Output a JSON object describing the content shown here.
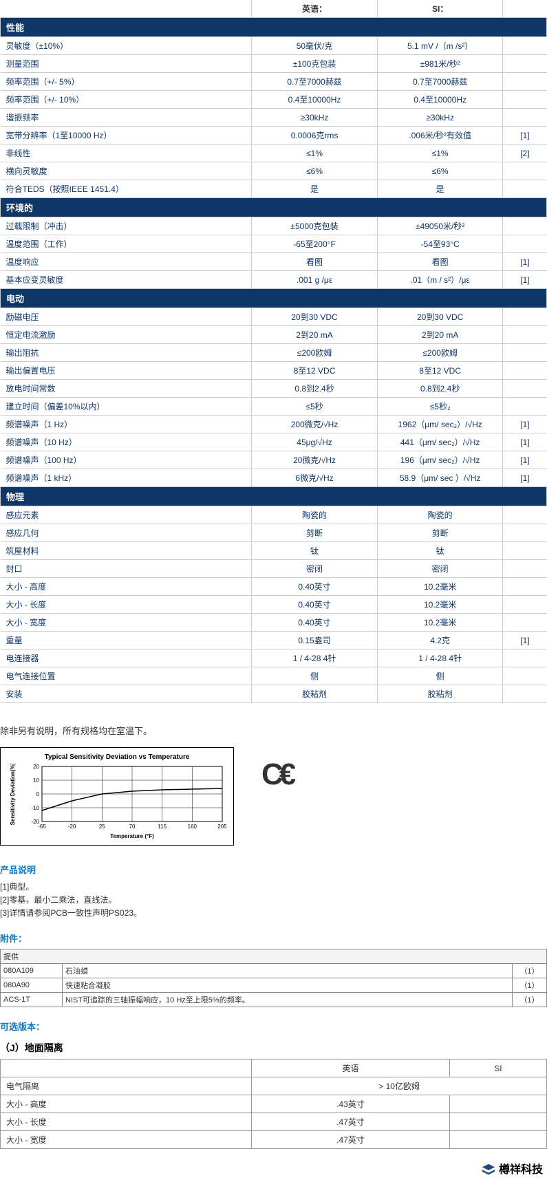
{
  "header": {
    "col_en": "英语：",
    "col_si": "SI："
  },
  "sections": [
    {
      "title": "性能",
      "rows": [
        {
          "label": "灵敏度（±10%）",
          "en": "50毫伏/克",
          "si": "5.1 mV /（m /s²）",
          "note": ""
        },
        {
          "label": "测量范围",
          "en": "±100克包装",
          "si": "±981米/秒²",
          "note": ""
        },
        {
          "label": "频率范围（+/- 5%）",
          "en": "0.7至7000赫兹",
          "si": "0.7至7000赫兹",
          "note": ""
        },
        {
          "label": "频率范围（+/- 10%）",
          "en": "0.4至10000Hz",
          "si": "0.4至10000Hz",
          "note": ""
        },
        {
          "label": "谐振频率",
          "en": "≥30kHz",
          "si": "≥30kHz",
          "note": ""
        },
        {
          "label": "宽带分辨率（1至10000 Hz）",
          "en": "0.0006克rms",
          "si": ".006米/秒²有效值",
          "note": "[1]"
        },
        {
          "label": "非线性",
          "en": "≤1%",
          "si": "≤1%",
          "note": "[2]"
        },
        {
          "label": "横向灵敏度",
          "en": "≤6%",
          "si": "≤6%",
          "note": ""
        },
        {
          "label": "符合TEDS（按照IEEE 1451.4）",
          "en": "是",
          "si": "是",
          "note": ""
        }
      ]
    },
    {
      "title": "环境的",
      "rows": [
        {
          "label": "过载限制（冲击）",
          "en": "±5000克包装",
          "si": "±49050米/秒²",
          "note": ""
        },
        {
          "label": "温度范围（工作）",
          "en": "-65至200°F",
          "si": "-54至93°C",
          "note": ""
        },
        {
          "label": "温度响应",
          "en": "看图",
          "si": "看图",
          "note": "[1]"
        },
        {
          "label": "基本应变灵敏度",
          "en": ".001 g /με",
          "si": ".01（m / s²）/με",
          "note": "[1]"
        }
      ]
    },
    {
      "title": "电动",
      "rows": [
        {
          "label": "励磁电压",
          "en": "20到30 VDC",
          "si": "20到30 VDC",
          "note": ""
        },
        {
          "label": "恒定电流激励",
          "en": "2到20 mA",
          "si": "2到20 mA",
          "note": ""
        },
        {
          "label": "输出阻抗",
          "en": "≤200欧姆",
          "si": "≤200欧姆",
          "note": ""
        },
        {
          "label": "输出偏置电压",
          "en": "8至12 VDC",
          "si": "8至12 VDC",
          "note": ""
        },
        {
          "label": "放电时间常数",
          "en": "0.8到2.4秒",
          "si": "0.8到2.4秒",
          "note": ""
        },
        {
          "label": "建立时间（偏差10%以内）",
          "en": "≤5秒",
          "si": "≤5秒₂",
          "note": ""
        },
        {
          "label": "频谱噪声（1 Hz）",
          "en": "200微克/√Hz",
          "si": "1962（μm/ sec₂）/√Hz",
          "note": "[1]"
        },
        {
          "label": "频谱噪声（10 Hz）",
          "en": "45μg/√Hz",
          "si": "441（μm/ sec₂）/√Hz",
          "note": "[1]"
        },
        {
          "label": "频谱噪声（100 Hz）",
          "en": "20微克/√Hz",
          "si": "196（μm/ sec₂）/√Hz",
          "note": "[1]"
        },
        {
          "label": "频谱噪声（1 kHz）",
          "en": "6微克/√Hz",
          "si": "58.9（μm/ sec ）/√Hz",
          "note": "[1]"
        }
      ]
    },
    {
      "title": "物理",
      "rows": [
        {
          "label": "感应元素",
          "en": "陶瓷的",
          "si": "陶瓷的",
          "note": ""
        },
        {
          "label": "感应几何",
          "en": "剪断",
          "si": "剪断",
          "note": ""
        },
        {
          "label": "筑屋材料",
          "en": "钛",
          "si": "钛",
          "note": ""
        },
        {
          "label": "封口",
          "en": "密闭",
          "si": "密闭",
          "note": ""
        },
        {
          "label": "大小 - 高度",
          "en": "0.40英寸",
          "si": "10.2毫米",
          "note": ""
        },
        {
          "label": "大小 - 长度",
          "en": "0.40英寸",
          "si": "10.2毫米",
          "note": ""
        },
        {
          "label": "大小 - 宽度",
          "en": "0.40英寸",
          "si": "10.2毫米",
          "note": ""
        },
        {
          "label": "重量",
          "en": "0.15盎司",
          "si": "4.2克",
          "note": "[1]"
        },
        {
          "label": "电连接器",
          "en": "1 / 4-28 4针",
          "si": "1 / 4-28 4针",
          "note": ""
        },
        {
          "label": "电气连接位置",
          "en": "侧",
          "si": "侧",
          "note": ""
        },
        {
          "label": "安装",
          "en": "胶粘剂",
          "si": "胶粘剂",
          "note": ""
        }
      ]
    }
  ],
  "room_temp_note": "除非另有说明，所有规格均在室温下。",
  "chart": {
    "title": "Typical Sensitivity Deviation vs Temperature",
    "x_label": "Temperature (°F)",
    "y_label": "Sensitivity Deviation(%)",
    "x_ticks": [
      "-65",
      "-20",
      "25",
      "70",
      "115",
      "160",
      "205"
    ],
    "y_ticks": [
      "20",
      "10",
      "0",
      "-10",
      "-20"
    ],
    "x_values": [
      -65,
      -20,
      25,
      70,
      115,
      160,
      205
    ],
    "y_values": [
      -12,
      -5,
      0,
      2,
      3,
      3.5,
      4
    ],
    "xlim": [
      -65,
      205
    ],
    "ylim": [
      -20,
      20
    ],
    "line_color": "#000000",
    "grid_color": "#000000",
    "background_color": "#ffffff",
    "title_fontsize": 10,
    "label_fontsize": 8,
    "tick_fontsize": 8,
    "line_width": 1.5
  },
  "ce_mark": "C€",
  "product_notes_heading": "产品说明",
  "product_notes": [
    "[1]典型。",
    "[2]零基，最小二乘法，直线法。",
    "[3]详情请参阅PCB一致性声明PS023。"
  ],
  "accessories_heading": "附件：",
  "accessories": {
    "provided_label": "提供",
    "rows": [
      {
        "code": "080A109",
        "desc": "石油蜡",
        "qty": "（1）"
      },
      {
        "code": "080A90",
        "desc": "快速粘合凝胶",
        "qty": "（1）"
      },
      {
        "code": "ACS-1T",
        "desc": "NIST可追踪的三轴振幅响应，10 Hz至上限5%的频率。",
        "qty": "（1）"
      }
    ]
  },
  "optional_heading": "可选版本：",
  "optional": {
    "title": "（J）地面隔离",
    "col_en": "英语",
    "col_si": "SI",
    "rows": [
      {
        "label": "电气隔离",
        "en": "> 10亿欧姆",
        "si": "",
        "merge": true
      },
      {
        "label": "大小 - 高度",
        "en": ".43英寸",
        "si": ""
      },
      {
        "label": "大小 - 长度",
        "en": ".47英寸",
        "si": ""
      },
      {
        "label": "大小 - 宽度",
        "en": ".47英寸",
        "si": ""
      }
    ]
  },
  "footer_brand": "樽祥科技"
}
